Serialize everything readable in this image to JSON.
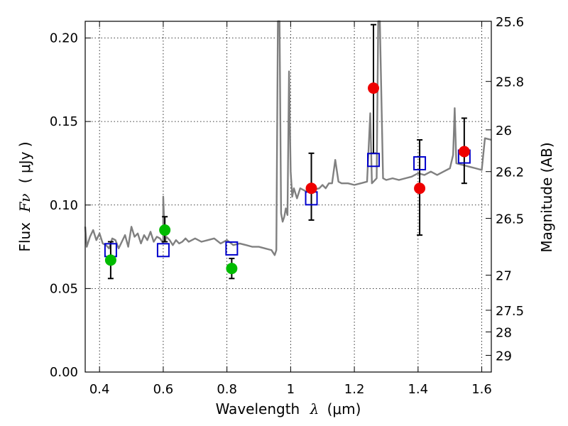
{
  "chart_data": {
    "type": "scatter",
    "xlabel_text": "Wavelength",
    "xlabel_symbol": "λ",
    "xlabel_unit": "(μm)",
    "ylabel_text": "Flux",
    "ylabel_symbol": "Fν",
    "ylabel_unit": "( μJy )",
    "y2label": "Magnitude (AB)",
    "xlim": [
      0.355,
      1.63
    ],
    "ylim": [
      0.0,
      0.21
    ],
    "x_ticks": [
      {
        "value": 0.4,
        "label": "0.4"
      },
      {
        "value": 0.6,
        "label": "0.6"
      },
      {
        "value": 0.8,
        "label": "0.8"
      },
      {
        "value": 1.0,
        "label": "1"
      },
      {
        "value": 1.2,
        "label": "1.2"
      },
      {
        "value": 1.4,
        "label": "1.4"
      },
      {
        "value": 1.6,
        "label": "1.6"
      }
    ],
    "y_ticks": [
      {
        "value": 0.0,
        "label": "0.00"
      },
      {
        "value": 0.05,
        "label": "0.05"
      },
      {
        "value": 0.1,
        "label": "0.10"
      },
      {
        "value": 0.15,
        "label": "0.15"
      },
      {
        "value": 0.2,
        "label": "0.20"
      }
    ],
    "y2_ticks": [
      {
        "flux": 0.21,
        "label": "25.6"
      },
      {
        "flux": 0.174,
        "label": "25.8"
      },
      {
        "flux": 0.145,
        "label": "26"
      },
      {
        "flux": 0.12,
        "label": "26.2"
      },
      {
        "flux": 0.092,
        "label": "26.5"
      },
      {
        "flux": 0.058,
        "label": "27"
      },
      {
        "flux": 0.037,
        "label": "27.5"
      },
      {
        "flux": 0.024,
        "label": "28"
      },
      {
        "flux": 0.01,
        "label": "29"
      }
    ],
    "colors": {
      "template": "#808080",
      "model": "#0000cc",
      "optical": "#00bb00",
      "infrared": "#ee0000",
      "errorbar": "#000000"
    },
    "series": [
      {
        "name": "template_spectrum",
        "type": "line",
        "points": [
          [
            0.355,
            0.087
          ],
          [
            0.36,
            0.075
          ],
          [
            0.37,
            0.081
          ],
          [
            0.38,
            0.085
          ],
          [
            0.39,
            0.079
          ],
          [
            0.4,
            0.083
          ],
          [
            0.41,
            0.077
          ],
          [
            0.42,
            0.076
          ],
          [
            0.43,
            0.074
          ],
          [
            0.44,
            0.08
          ],
          [
            0.45,
            0.079
          ],
          [
            0.46,
            0.074
          ],
          [
            0.47,
            0.078
          ],
          [
            0.48,
            0.082
          ],
          [
            0.49,
            0.075
          ],
          [
            0.5,
            0.087
          ],
          [
            0.51,
            0.081
          ],
          [
            0.52,
            0.083
          ],
          [
            0.53,
            0.077
          ],
          [
            0.54,
            0.082
          ],
          [
            0.55,
            0.079
          ],
          [
            0.56,
            0.084
          ],
          [
            0.57,
            0.078
          ],
          [
            0.58,
            0.081
          ],
          [
            0.59,
            0.08
          ],
          [
            0.6,
            0.077
          ],
          [
            0.6,
            0.105
          ],
          [
            0.605,
            0.078
          ],
          [
            0.61,
            0.081
          ],
          [
            0.62,
            0.079
          ],
          [
            0.63,
            0.076
          ],
          [
            0.64,
            0.079
          ],
          [
            0.65,
            0.077
          ],
          [
            0.66,
            0.078
          ],
          [
            0.67,
            0.08
          ],
          [
            0.68,
            0.078
          ],
          [
            0.69,
            0.079
          ],
          [
            0.7,
            0.08
          ],
          [
            0.72,
            0.078
          ],
          [
            0.74,
            0.079
          ],
          [
            0.76,
            0.08
          ],
          [
            0.78,
            0.077
          ],
          [
            0.8,
            0.079
          ],
          [
            0.82,
            0.076
          ],
          [
            0.84,
            0.077
          ],
          [
            0.86,
            0.076
          ],
          [
            0.88,
            0.075
          ],
          [
            0.9,
            0.075
          ],
          [
            0.92,
            0.074
          ],
          [
            0.94,
            0.073
          ],
          [
            0.95,
            0.07
          ],
          [
            0.955,
            0.073
          ],
          [
            0.96,
            0.21
          ],
          [
            0.965,
            0.21
          ],
          [
            0.97,
            0.095
          ],
          [
            0.975,
            0.09
          ],
          [
            0.98,
            0.093
          ],
          [
            0.985,
            0.098
          ],
          [
            0.99,
            0.094
          ],
          [
            0.995,
            0.18
          ],
          [
            1.0,
            0.12
          ],
          [
            1.005,
            0.105
          ],
          [
            1.01,
            0.11
          ],
          [
            1.02,
            0.104
          ],
          [
            1.03,
            0.11
          ],
          [
            1.05,
            0.108
          ],
          [
            1.07,
            0.109
          ],
          [
            1.09,
            0.11
          ],
          [
            1.1,
            0.112
          ],
          [
            1.11,
            0.11
          ],
          [
            1.12,
            0.113
          ],
          [
            1.13,
            0.113
          ],
          [
            1.14,
            0.127
          ],
          [
            1.15,
            0.114
          ],
          [
            1.16,
            0.113
          ],
          [
            1.18,
            0.113
          ],
          [
            1.2,
            0.112
          ],
          [
            1.22,
            0.113
          ],
          [
            1.24,
            0.114
          ],
          [
            1.25,
            0.155
          ],
          [
            1.255,
            0.113
          ],
          [
            1.27,
            0.116
          ],
          [
            1.275,
            0.21
          ],
          [
            1.28,
            0.21
          ],
          [
            1.29,
            0.116
          ],
          [
            1.3,
            0.115
          ],
          [
            1.32,
            0.116
          ],
          [
            1.34,
            0.115
          ],
          [
            1.36,
            0.116
          ],
          [
            1.38,
            0.117
          ],
          [
            1.4,
            0.119
          ],
          [
            1.42,
            0.118
          ],
          [
            1.44,
            0.12
          ],
          [
            1.46,
            0.118
          ],
          [
            1.48,
            0.12
          ],
          [
            1.5,
            0.122
          ],
          [
            1.51,
            0.13
          ],
          [
            1.515,
            0.158
          ],
          [
            1.52,
            0.125
          ],
          [
            1.54,
            0.124
          ],
          [
            1.56,
            0.123
          ],
          [
            1.58,
            0.122
          ],
          [
            1.6,
            0.121
          ],
          [
            1.61,
            0.14
          ],
          [
            1.63,
            0.139
          ]
        ]
      },
      {
        "name": "model_photometry",
        "type": "scatter",
        "marker": "square-open",
        "x": [
          0.435,
          0.6,
          0.815,
          1.065,
          1.26,
          1.405,
          1.545
        ],
        "y": [
          0.073,
          0.073,
          0.074,
          0.104,
          0.127,
          0.125,
          0.129
        ]
      },
      {
        "name": "optical_photometry",
        "type": "scatter",
        "marker": "circle",
        "x": [
          0.435,
          0.605,
          0.815
        ],
        "y": [
          0.067,
          0.085,
          0.062
        ],
        "yerr_low": [
          0.056,
          0.078,
          0.056
        ],
        "yerr_high": [
          0.078,
          0.093,
          0.068
        ]
      },
      {
        "name": "infrared_photometry",
        "type": "scatter",
        "marker": "circle",
        "x": [
          1.065,
          1.26,
          1.405,
          1.545
        ],
        "y": [
          0.11,
          0.17,
          0.11,
          0.132
        ],
        "yerr_low": [
          0.091,
          0.131,
          0.082,
          0.113
        ],
        "yerr_high": [
          0.131,
          0.208,
          0.139,
          0.152
        ]
      }
    ]
  }
}
